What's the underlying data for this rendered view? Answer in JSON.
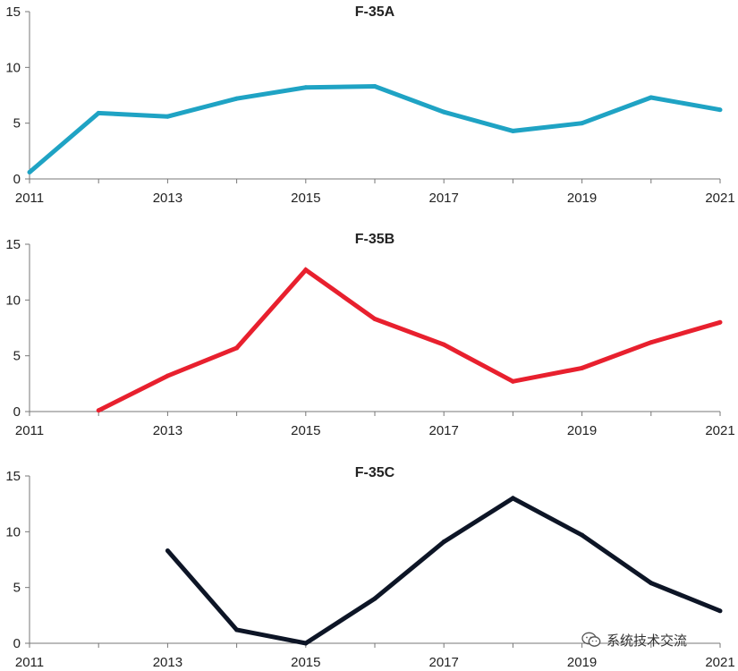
{
  "chart_data": [
    {
      "type": "line",
      "title": "F-35A",
      "color": "#1fa3c4",
      "x": [
        2011,
        2012,
        2013,
        2014,
        2015,
        2016,
        2017,
        2018,
        2019,
        2020,
        2021
      ],
      "values": [
        0.6,
        5.9,
        5.6,
        7.2,
        8.2,
        8.3,
        6.0,
        4.3,
        5.0,
        7.3,
        6.2
      ],
      "xlim": [
        2011,
        2021
      ],
      "ylim": [
        0,
        15
      ],
      "xticks": [
        "2011",
        "2013",
        "2015",
        "2017",
        "2019",
        "2021"
      ],
      "yticks": [
        "0",
        "5",
        "10",
        "15"
      ],
      "xlabel": "",
      "ylabel": "",
      "grid": false
    },
    {
      "type": "line",
      "title": "F-35B",
      "color": "#e8202e",
      "x": [
        2012,
        2013,
        2014,
        2015,
        2016,
        2017,
        2018,
        2019,
        2020,
        2021
      ],
      "values": [
        0.1,
        3.2,
        5.7,
        12.7,
        8.3,
        6.0,
        2.7,
        3.9,
        6.2,
        8.0
      ],
      "xlim": [
        2011,
        2021
      ],
      "ylim": [
        0,
        15
      ],
      "xticks": [
        "2011",
        "2013",
        "2015",
        "2017",
        "2019",
        "2021"
      ],
      "yticks": [
        "0",
        "5",
        "10",
        "15"
      ],
      "xlabel": "",
      "ylabel": "",
      "grid": false
    },
    {
      "type": "line",
      "title": "F-35C",
      "color": "#0d1526",
      "x": [
        2013,
        2014,
        2015,
        2016,
        2017,
        2018,
        2019,
        2020,
        2021
      ],
      "values": [
        8.3,
        1.2,
        0.0,
        4.0,
        9.1,
        13.0,
        9.7,
        5.4,
        2.9
      ],
      "xlim": [
        2011,
        2021
      ],
      "ylim": [
        0,
        15
      ],
      "xticks": [
        "2011",
        "2013",
        "2015",
        "2017",
        "2019",
        "2021"
      ],
      "yticks": [
        "0",
        "5",
        "10",
        "15"
      ],
      "xlabel": "",
      "ylabel": "",
      "grid": false
    }
  ],
  "watermark": {
    "text": "系统技术交流",
    "icon": "wechat-icon"
  }
}
